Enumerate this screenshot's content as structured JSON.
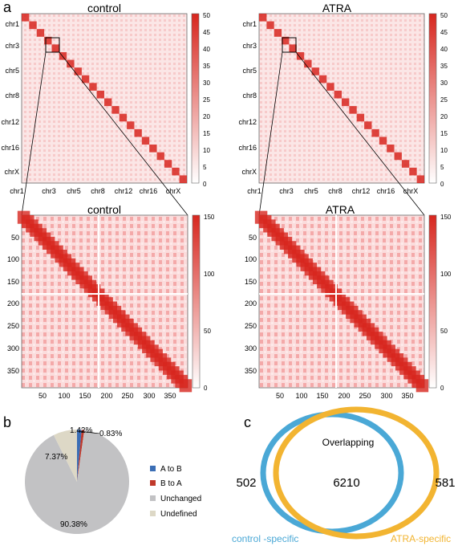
{
  "panel_labels": {
    "a": "a",
    "b": "b",
    "c": "c"
  },
  "heatmaps": {
    "top": [
      {
        "title": "control",
        "chromosomes": [
          "chr1",
          "chr3",
          "chr5",
          "chr8",
          "chr12",
          "chr16",
          "chrX"
        ],
        "colorbar": {
          "min": 0,
          "max": 50,
          "ticks": [
            "0",
            "5",
            "10",
            "15",
            "20",
            "25",
            "30",
            "35",
            "40",
            "45",
            "50"
          ]
        }
      },
      {
        "title": "ATRA",
        "chromosomes": [
          "chr1",
          "chr3",
          "chr5",
          "chr8",
          "chr12",
          "chr16",
          "chrX"
        ],
        "colorbar": {
          "min": 0,
          "max": 50,
          "ticks": [
            "0",
            "5",
            "10",
            "15",
            "20",
            "25",
            "30",
            "35",
            "40",
            "45",
            "50"
          ]
        }
      }
    ],
    "zoom": [
      {
        "title": "control",
        "y_ticks": [
          "50",
          "100",
          "150",
          "200",
          "250",
          "300",
          "350"
        ],
        "x_ticks": [
          "50",
          "100",
          "150",
          "200",
          "250",
          "300",
          "350"
        ],
        "colorbar": {
          "min": 0,
          "max": 150,
          "ticks": [
            "0",
            "50",
            "100",
            "150"
          ]
        }
      },
      {
        "title": "ATRA",
        "y_ticks": [
          "50",
          "100",
          "150",
          "200",
          "250",
          "300",
          "350"
        ],
        "x_ticks": [
          "50",
          "100",
          "150",
          "200",
          "250",
          "300",
          "350"
        ],
        "colorbar": {
          "min": 0,
          "max": 150,
          "ticks": [
            "0",
            "50",
            "100",
            "150"
          ]
        }
      }
    ],
    "colors": {
      "high": "#d7261e",
      "low": "#ffffff"
    }
  },
  "chart_data": [
    {
      "type": "heatmap",
      "title": "control",
      "x_tick_labels": [
        "chr1",
        "chr3",
        "chr5",
        "chr8",
        "chr12",
        "chr16",
        "chrX"
      ],
      "y_tick_labels": [
        "chr1",
        "chr3",
        "chr5",
        "chr8",
        "chr12",
        "chr16",
        "chrX"
      ],
      "colorbar_range": [
        0,
        50
      ]
    },
    {
      "type": "heatmap",
      "title": "ATRA",
      "x_tick_labels": [
        "chr1",
        "chr3",
        "chr5",
        "chr8",
        "chr12",
        "chr16",
        "chrX"
      ],
      "y_tick_labels": [
        "chr1",
        "chr3",
        "chr5",
        "chr8",
        "chr12",
        "chr16",
        "chrX"
      ],
      "colorbar_range": [
        0,
        50
      ]
    },
    {
      "type": "heatmap",
      "title": "control",
      "x_range": [
        0,
        390
      ],
      "y_range": [
        0,
        390
      ],
      "colorbar_range": [
        0,
        150
      ]
    },
    {
      "type": "heatmap",
      "title": "ATRA",
      "x_range": [
        0,
        390
      ],
      "y_range": [
        0,
        390
      ],
      "colorbar_range": [
        0,
        150
      ]
    },
    {
      "type": "pie",
      "slices": [
        {
          "label": "A to B",
          "percent": 1.42,
          "value_label": "1.42%",
          "color": "#3b6eb5"
        },
        {
          "label": "B to A",
          "percent": 0.83,
          "value_label": "0.83%",
          "color": "#c0392b"
        },
        {
          "label": "Unchanged",
          "percent": 90.38,
          "value_label": "90.38%",
          "color": "#c2c2c4"
        },
        {
          "label": "Undefined",
          "percent": 7.37,
          "value_label": "7.37%",
          "color": "#ddd8c6"
        }
      ],
      "legend_position": "right"
    },
    {
      "type": "venn",
      "sets": [
        {
          "label": "control -specific",
          "unique": 502,
          "color": "#4aa8d6"
        },
        {
          "label": "ATRA-specific",
          "unique": 581,
          "color": "#f2b431"
        }
      ],
      "overlap_label": "Overlapping",
      "overlap": 6210
    }
  ]
}
